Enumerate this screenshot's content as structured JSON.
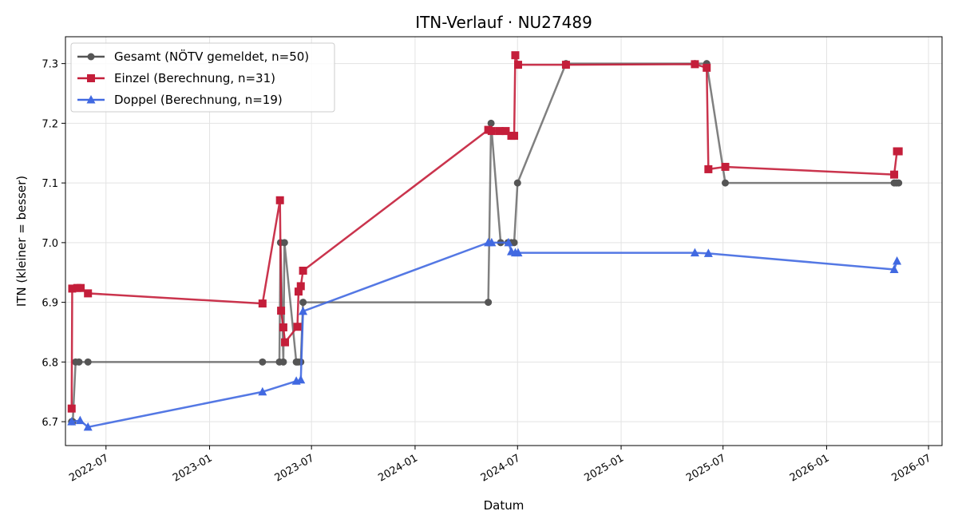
{
  "chart_data": {
    "type": "line",
    "title": "ITN-Verlauf · NU27489",
    "xlabel": "Datum",
    "ylabel": "ITN  (kleiner = besser)",
    "x_type": "date",
    "xlim": [
      "2022-04-20",
      "2026-07-25"
    ],
    "ylim": [
      6.66,
      7.345
    ],
    "x_ticks": [
      "2022-07-01",
      "2023-01-01",
      "2023-07-01",
      "2024-01-01",
      "2024-07-01",
      "2025-01-01",
      "2025-07-01",
      "2026-01-01",
      "2026-07-01"
    ],
    "x_tick_labels": [
      "2022-07",
      "2023-01",
      "2023-07",
      "2024-01",
      "2024-07",
      "2025-01",
      "2025-07",
      "2026-01",
      "2026-07"
    ],
    "y_ticks": [
      6.7,
      6.8,
      6.9,
      7.0,
      7.1,
      7.2,
      7.3
    ],
    "y_tick_labels": [
      "6.7",
      "6.8",
      "6.9",
      "7.0",
      "7.1",
      "7.2",
      "7.3"
    ],
    "grid": true,
    "legend_position": "top-left",
    "series": [
      {
        "name": "Gesamt (NÖTV gemeldet, n=50)",
        "color": "#555555",
        "marker": "circle",
        "points": [
          [
            "2022-05-01",
            6.7
          ],
          [
            "2022-05-03",
            6.7
          ],
          [
            "2022-05-08",
            6.8
          ],
          [
            "2022-05-14",
            6.8
          ],
          [
            "2022-05-30",
            6.8
          ],
          [
            "2023-04-05",
            6.8
          ],
          [
            "2023-05-05",
            6.8
          ],
          [
            "2023-05-07",
            7.0
          ],
          [
            "2023-05-12",
            6.8
          ],
          [
            "2023-05-14",
            7.0
          ],
          [
            "2023-06-04",
            6.8
          ],
          [
            "2023-06-07",
            6.8
          ],
          [
            "2023-06-12",
            6.8
          ],
          [
            "2023-06-16",
            6.9
          ],
          [
            "2024-05-10",
            6.9
          ],
          [
            "2024-05-15",
            7.2
          ],
          [
            "2024-06-01",
            7.0
          ],
          [
            "2024-06-14",
            7.0
          ],
          [
            "2024-06-20",
            7.0
          ],
          [
            "2024-06-25",
            7.0
          ],
          [
            "2024-07-01",
            7.1
          ],
          [
            "2024-09-25",
            7.3
          ],
          [
            "2025-05-12",
            7.3
          ],
          [
            "2025-06-02",
            7.3
          ],
          [
            "2025-07-05",
            7.1
          ],
          [
            "2026-05-01",
            7.1
          ],
          [
            "2026-05-05",
            7.1
          ],
          [
            "2026-05-09",
            7.1
          ]
        ]
      },
      {
        "name": "Einzel (Berechnung, n=31)",
        "color": "#c41e3a",
        "marker": "square",
        "points": [
          [
            "2022-05-01",
            6.722
          ],
          [
            "2022-05-02",
            6.923
          ],
          [
            "2022-05-11",
            6.924
          ],
          [
            "2022-05-17",
            6.924
          ],
          [
            "2022-05-30",
            6.915
          ],
          [
            "2023-04-05",
            6.898
          ],
          [
            "2023-05-06",
            7.071
          ],
          [
            "2023-05-08",
            6.886
          ],
          [
            "2023-05-12",
            6.858
          ],
          [
            "2023-05-15",
            6.833
          ],
          [
            "2023-06-06",
            6.859
          ],
          [
            "2023-06-08",
            6.918
          ],
          [
            "2023-06-12",
            6.927
          ],
          [
            "2023-06-16",
            6.953
          ],
          [
            "2024-05-10",
            7.189
          ],
          [
            "2024-05-16",
            7.187
          ],
          [
            "2024-05-30",
            7.187
          ],
          [
            "2024-06-10",
            7.187
          ],
          [
            "2024-06-20",
            7.179
          ],
          [
            "2024-06-25",
            7.179
          ],
          [
            "2024-06-27",
            7.314
          ],
          [
            "2024-07-02",
            7.298
          ],
          [
            "2024-09-25",
            7.298
          ],
          [
            "2025-05-12",
            7.299
          ],
          [
            "2025-06-02",
            7.293
          ],
          [
            "2025-06-05",
            7.123
          ],
          [
            "2025-07-05",
            7.127
          ],
          [
            "2026-05-01",
            7.114
          ],
          [
            "2026-05-06",
            7.153
          ],
          [
            "2026-05-09",
            7.153
          ]
        ]
      },
      {
        "name": "Doppel (Berechnung, n=19)",
        "color": "#4169e1",
        "marker": "triangle",
        "points": [
          [
            "2022-05-01",
            6.7
          ],
          [
            "2022-05-16",
            6.702
          ],
          [
            "2022-05-30",
            6.691
          ],
          [
            "2023-04-05",
            6.75
          ],
          [
            "2023-06-04",
            6.768
          ],
          [
            "2023-06-12",
            6.77
          ],
          [
            "2023-06-16",
            6.885
          ],
          [
            "2024-05-10",
            7.0
          ],
          [
            "2024-05-16",
            7.0
          ],
          [
            "2024-06-15",
            7.0
          ],
          [
            "2024-06-20",
            6.985
          ],
          [
            "2024-06-27",
            6.983
          ],
          [
            "2024-07-02",
            6.983
          ],
          [
            "2025-05-12",
            6.983
          ],
          [
            "2025-06-05",
            6.982
          ],
          [
            "2026-05-01",
            6.955
          ],
          [
            "2026-05-06",
            6.969
          ]
        ]
      }
    ]
  }
}
